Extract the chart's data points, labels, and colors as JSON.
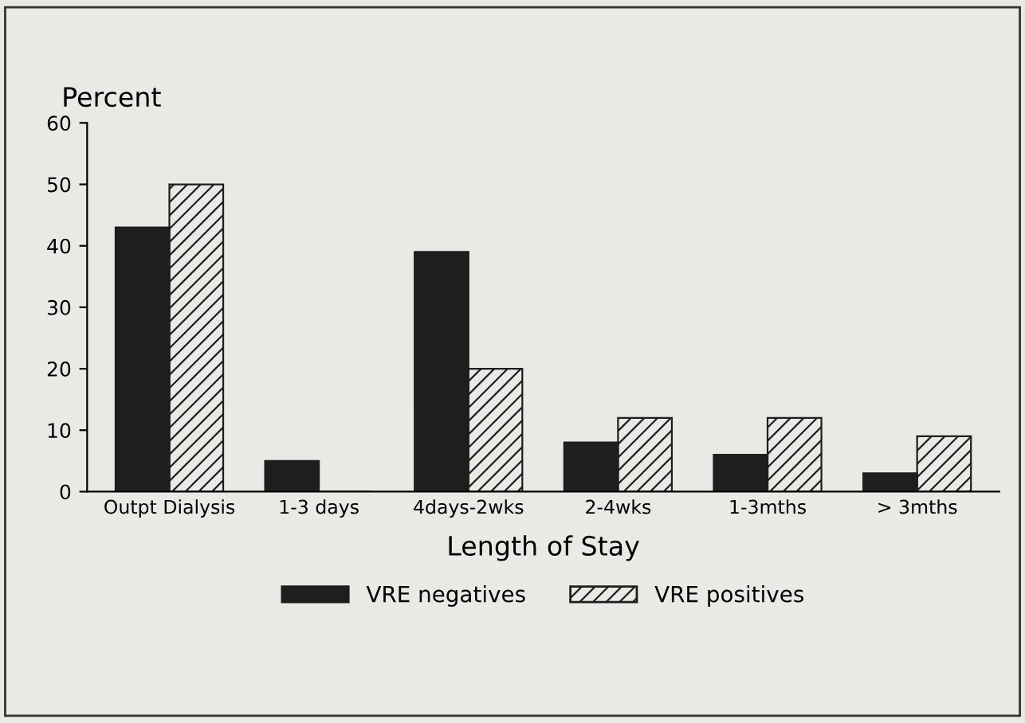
{
  "chart_data": {
    "type": "bar",
    "ylabel": "Percent",
    "xlabel": "Length of Stay",
    "categories": [
      "Outpt Dialysis",
      "1-3 days",
      "4days-2wks",
      "2-4wks",
      "1-3mths",
      "> 3mths"
    ],
    "series": [
      {
        "name": "VRE negatives",
        "color": "#1e1e1e",
        "values": [
          43,
          5,
          39,
          8,
          6,
          3
        ]
      },
      {
        "name": "VRE positives",
        "color": "#1e1e1e",
        "values": [
          50,
          0,
          20,
          12,
          12,
          9
        ]
      }
    ],
    "ylim": [
      0,
      60
    ],
    "yticks": [
      0,
      10,
      20,
      30,
      40,
      50,
      60
    ],
    "grid": false,
    "legend": "bottom"
  }
}
